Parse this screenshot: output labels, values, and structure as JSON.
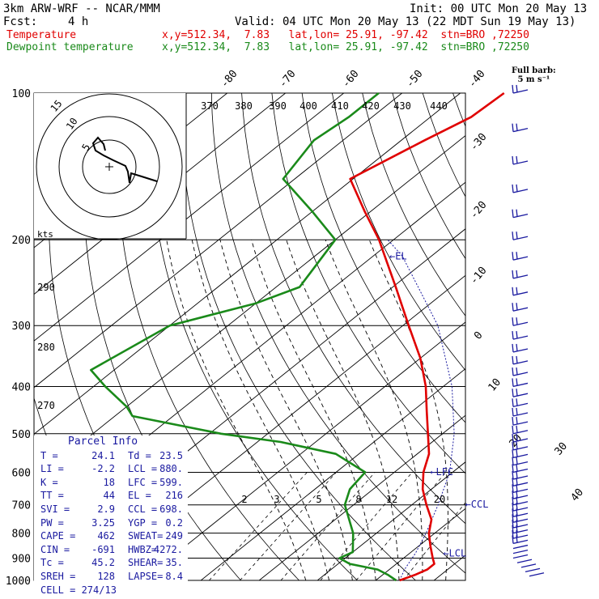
{
  "header": {
    "model": "3km ARW-WRF -- NCAR/MMM",
    "init": "Init: 00 UTC Mon 20 May 13",
    "fcst_label": "Fcst:",
    "fcst_value": "4 h",
    "valid": "Valid: 04 UTC Mon 20 May 13 (22 MDT Sun 19 May 13)",
    "temp_label": "Temperature",
    "temp_info": "x,y=512.34,  7.83   lat,lon= 25.91, -97.42  stn=BRO ,72250",
    "dew_label": "Dewpoint temperature",
    "dew_info": "x,y=512.34,  7.83   lat,lon= 25.91, -97.42  stn=BRO ,72250"
  },
  "colors": {
    "temperature": "#e00000",
    "dewpoint": "#1a8a1a",
    "parcel": "#1a1aa0",
    "wind": "#1a1aa0"
  },
  "chart_data": {
    "type": "skew-t",
    "y_axis": {
      "label_values": [
        "100",
        "200",
        "300",
        "400",
        "500",
        "600",
        "700",
        "800",
        "900",
        "1000"
      ],
      "scale": "log-pressure",
      "range_hPa": [
        1000,
        100
      ]
    },
    "isotherm_labels": [
      "-80",
      "-70",
      "-60",
      "-50",
      "-40",
      "-30",
      "-20",
      "-10",
      "0",
      "10",
      "20",
      "30",
      "40"
    ],
    "theta_labels": [
      "370",
      "380",
      "390",
      "400",
      "410",
      "420",
      "430",
      "440",
      "290",
      "280",
      "270"
    ],
    "mixing_ratio_labels": [
      "2",
      "3",
      "5",
      "8",
      "12",
      "20"
    ],
    "temperature_profile": [
      {
        "p": 1000,
        "t": 24.1
      },
      {
        "p": 975,
        "t": 25.5
      },
      {
        "p": 950,
        "t": 26.5
      },
      {
        "p": 925,
        "t": 26.5
      },
      {
        "p": 900,
        "t": 25.0
      },
      {
        "p": 850,
        "t": 22.0
      },
      {
        "p": 800,
        "t": 19.0
      },
      {
        "p": 750,
        "t": 16.5
      },
      {
        "p": 700,
        "t": 12.5
      },
      {
        "p": 650,
        "t": 8.5
      },
      {
        "p": 600,
        "t": 5.0
      },
      {
        "p": 550,
        "t": 2.0
      },
      {
        "p": 500,
        "t": -2.5
      },
      {
        "p": 450,
        "t": -7.5
      },
      {
        "p": 400,
        "t": -13.0
      },
      {
        "p": 350,
        "t": -20.0
      },
      {
        "p": 300,
        "t": -29.0
      },
      {
        "p": 250,
        "t": -39.5
      },
      {
        "p": 200,
        "t": -52.5
      },
      {
        "p": 175,
        "t": -61.0
      },
      {
        "p": 150,
        "t": -70.5
      },
      {
        "p": 125,
        "t": -66.0
      },
      {
        "p": 112,
        "t": -63.0
      },
      {
        "p": 100,
        "t": -62.5
      }
    ],
    "dewpoint_profile": [
      {
        "p": 1000,
        "t": 23.5
      },
      {
        "p": 975,
        "t": 21.0
      },
      {
        "p": 950,
        "t": 18.0
      },
      {
        "p": 925,
        "t": 12.0
      },
      {
        "p": 900,
        "t": 9.0
      },
      {
        "p": 875,
        "t": 10.0
      },
      {
        "p": 800,
        "t": 6.0
      },
      {
        "p": 700,
        "t": -1.5
      },
      {
        "p": 650,
        "t": -4.0
      },
      {
        "p": 600,
        "t": -5.0
      },
      {
        "p": 550,
        "t": -14.0
      },
      {
        "p": 520,
        "t": -26.0
      },
      {
        "p": 500,
        "t": -38.0
      },
      {
        "p": 460,
        "t": -57.0
      },
      {
        "p": 440,
        "t": -60.0
      },
      {
        "p": 400,
        "t": -68.0
      },
      {
        "p": 370,
        "t": -74.0
      },
      {
        "p": 300,
        "t": -70.0
      },
      {
        "p": 270,
        "t": -60.0
      },
      {
        "p": 250,
        "t": -56.0
      },
      {
        "p": 200,
        "t": -60.0
      },
      {
        "p": 175,
        "t": -70.0
      },
      {
        "p": 150,
        "t": -82.0
      },
      {
        "p": 125,
        "t": -85.0
      },
      {
        "p": 112,
        "t": -84.0
      },
      {
        "p": 100,
        "t": -84.0
      }
    ],
    "parcel_levels": [
      {
        "label": "EL",
        "p": 216
      },
      {
        "label": "LFC",
        "p": 599
      },
      {
        "label": "CCL",
        "p": 698
      },
      {
        "label": "LCL",
        "p": 880
      }
    ],
    "hodograph": {
      "ring_labels": [
        "5",
        "10",
        "15"
      ],
      "axis_label": "kts"
    },
    "wind_legend": {
      "title": "Full barb:",
      "value": "5 m s⁻¹"
    }
  },
  "parcel_info": {
    "title": "Parcel Info",
    "rows": [
      [
        "T  =",
        "24.1",
        "Td =",
        "23.5"
      ],
      [
        "LI =",
        "-2.2",
        "LCL =",
        "880."
      ],
      [
        "K  =",
        "18",
        "LFC =",
        "599."
      ],
      [
        "TT =",
        "44",
        "EL =",
        "216"
      ],
      [
        "SVI =",
        "2.9",
        "CCL =",
        "698."
      ],
      [
        "PW =",
        "3.25",
        "YGP =",
        "0.2"
      ],
      [
        "CAPE =",
        "462",
        "SWEAT=",
        "249"
      ],
      [
        "CIN =",
        "-691",
        "HWBZ=",
        "4272."
      ],
      [
        "Tc =",
        "45.2",
        "SHEAR=",
        "35."
      ],
      [
        "SREH =",
        "128",
        "LAPSE=",
        "8.4"
      ]
    ],
    "last": "CELL = 274/13"
  }
}
